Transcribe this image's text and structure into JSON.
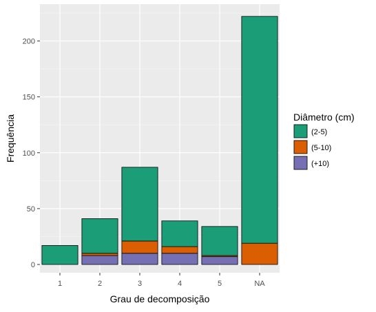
{
  "chart_data": {
    "type": "bar",
    "stacked": true,
    "xlabel": "Grau de decomposição",
    "ylabel": "Frequência",
    "categories": [
      "1",
      "2",
      "3",
      "4",
      "5",
      "NA"
    ],
    "ylim": [
      0,
      225
    ],
    "yticks": [
      0,
      50,
      100,
      150,
      200
    ],
    "grid": true,
    "legend": {
      "title": "Diâmetro (cm)",
      "position": "right"
    },
    "series": [
      {
        "name": "(+10)",
        "color": "#7570B3",
        "values": [
          0,
          8,
          10,
          10,
          7,
          0
        ]
      },
      {
        "name": "(5-10)",
        "color": "#D95F02",
        "values": [
          0,
          2,
          11,
          6,
          1,
          19
        ]
      },
      {
        "name": "(2-5)",
        "color": "#1B9E77",
        "values": [
          17,
          31,
          66,
          23,
          26,
          203
        ]
      }
    ],
    "legend_order": [
      "(2-5)",
      "(5-10)",
      "(+10)"
    ]
  }
}
